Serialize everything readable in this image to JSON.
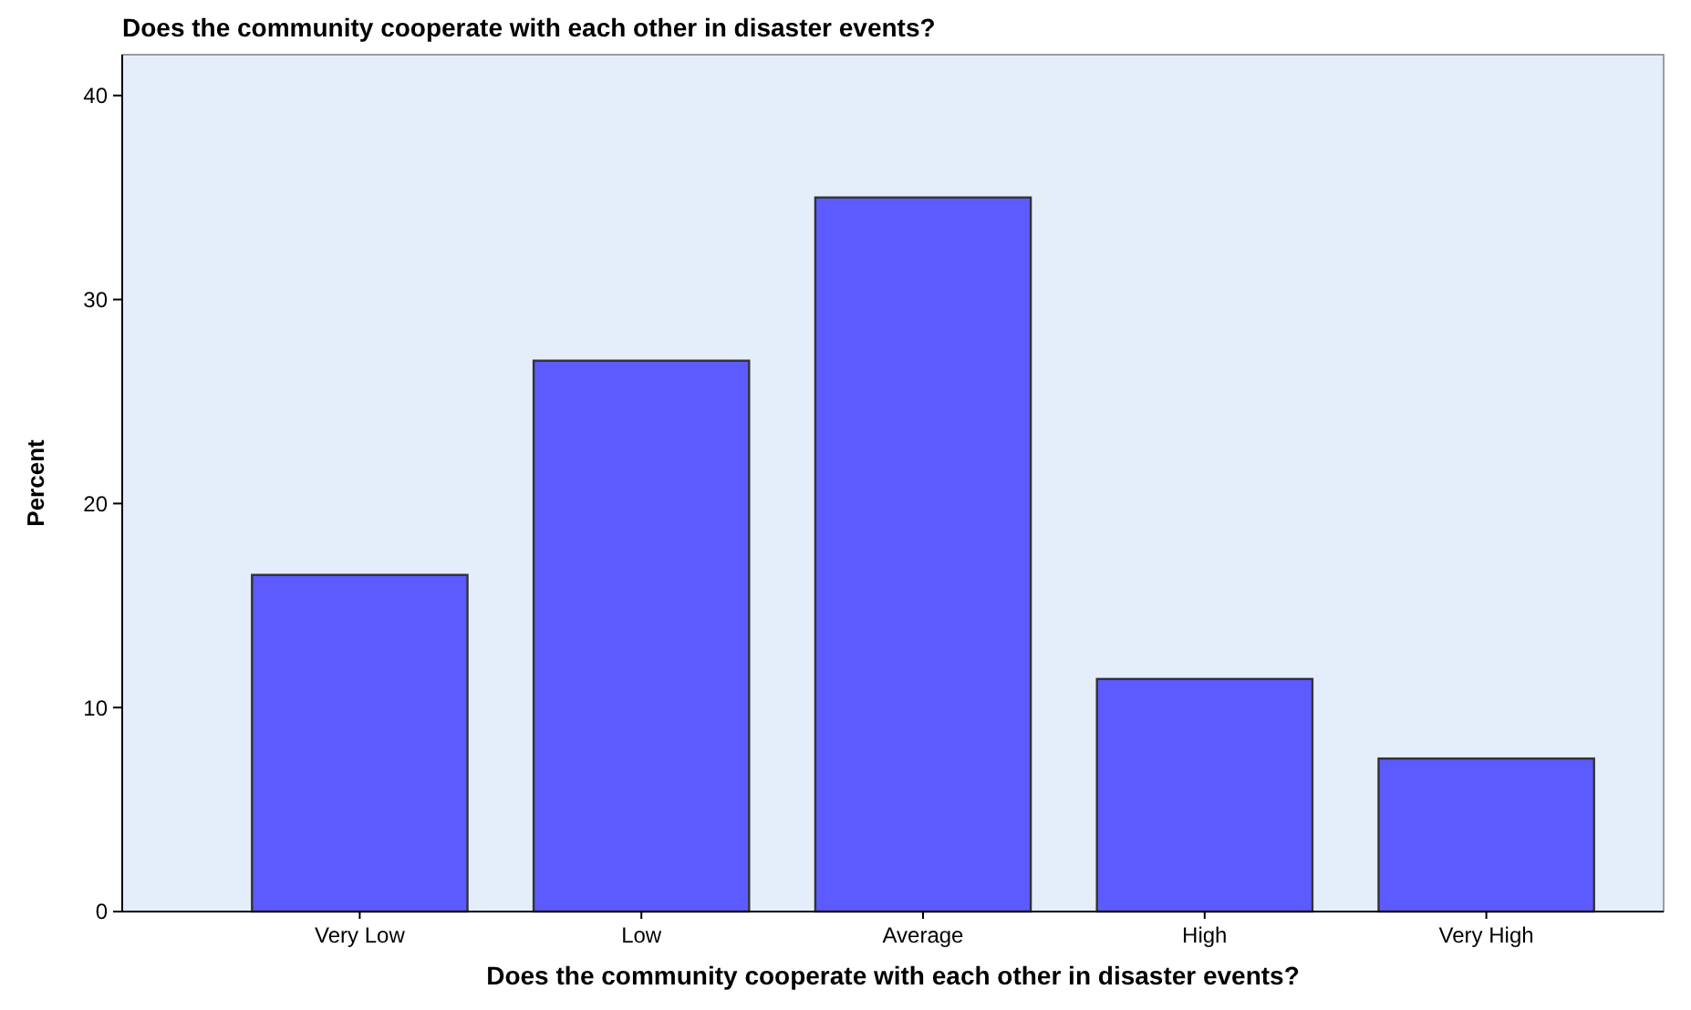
{
  "chart_data": {
    "type": "bar",
    "title": "Does the community cooperate with each other in disaster events?",
    "xlabel": "Does the community cooperate with each other in disaster events?",
    "ylabel": "Percent",
    "categories": [
      "Very Low",
      "Low",
      "Average",
      "High",
      "Very High"
    ],
    "values": [
      16.5,
      27,
      35,
      11.4,
      7.5
    ],
    "color": "#5b5bff",
    "ylim": [
      0,
      42
    ],
    "yticks": [
      0,
      10,
      20,
      30,
      40
    ],
    "grid": false
  }
}
